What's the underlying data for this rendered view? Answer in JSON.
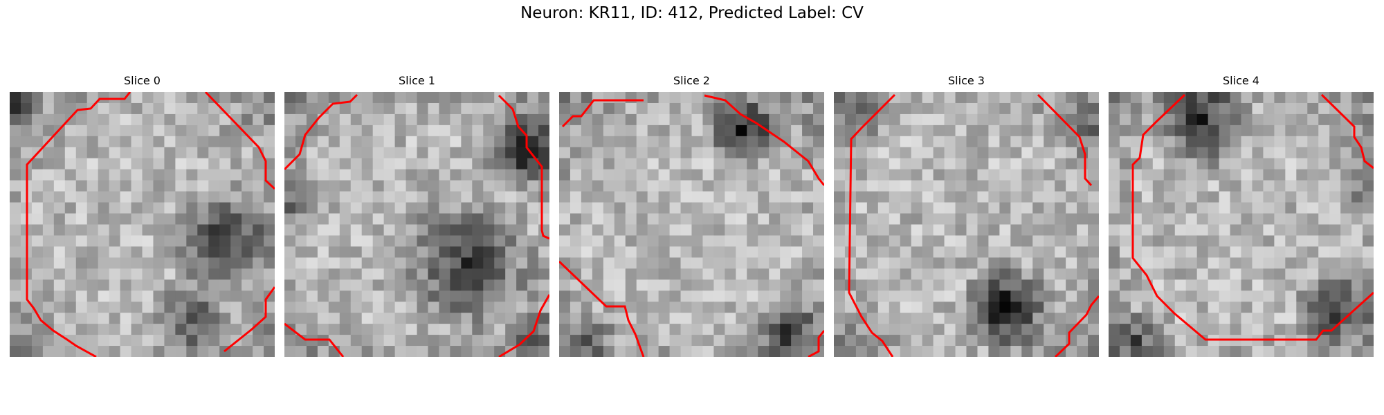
{
  "title": "Neuron: KR11, ID: 412, Predicted Label: CV",
  "contour_color": "#ff0000",
  "panels": [
    {
      "title": "Slice 0"
    },
    {
      "title": "Slice 1"
    },
    {
      "title": "Slice 2"
    },
    {
      "title": "Slice 3"
    },
    {
      "title": "Slice 4"
    }
  ]
}
